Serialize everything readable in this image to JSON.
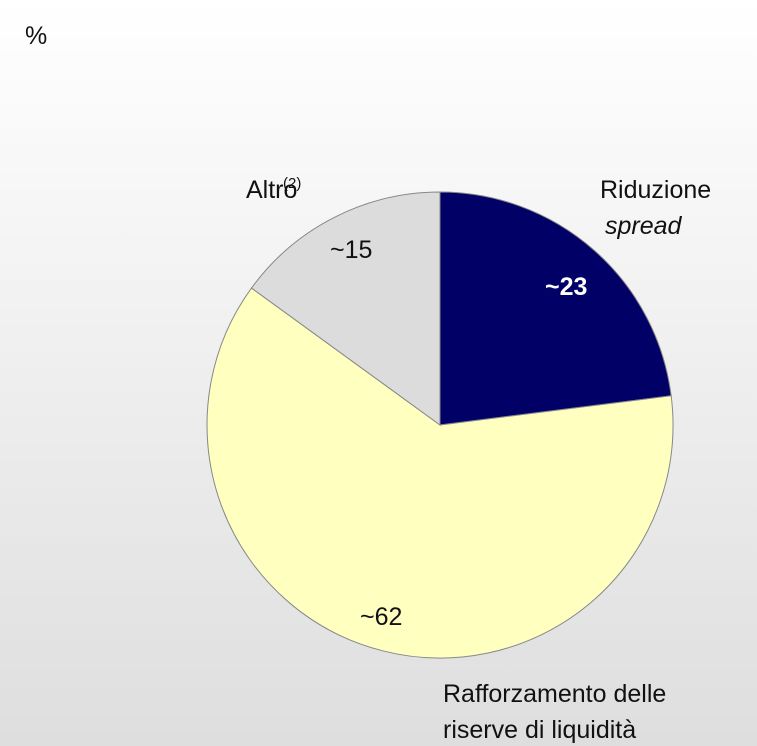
{
  "chart_data": {
    "type": "pie",
    "subtitle": "%",
    "categories": [
      [
        "Riduzione",
        "spread"
      ],
      [
        "Rafforzamento delle",
        "riserve di liquidità"
      ],
      [
        "Altro",
        "(2)"
      ]
    ],
    "values": [
      23,
      62,
      15
    ],
    "value_labels": [
      "~23",
      "~62",
      "~15"
    ],
    "colors": [
      "#000066",
      "#ffffc0",
      "#dcdcdc"
    ],
    "start_angle": 0,
    "direction": "clockwise"
  }
}
